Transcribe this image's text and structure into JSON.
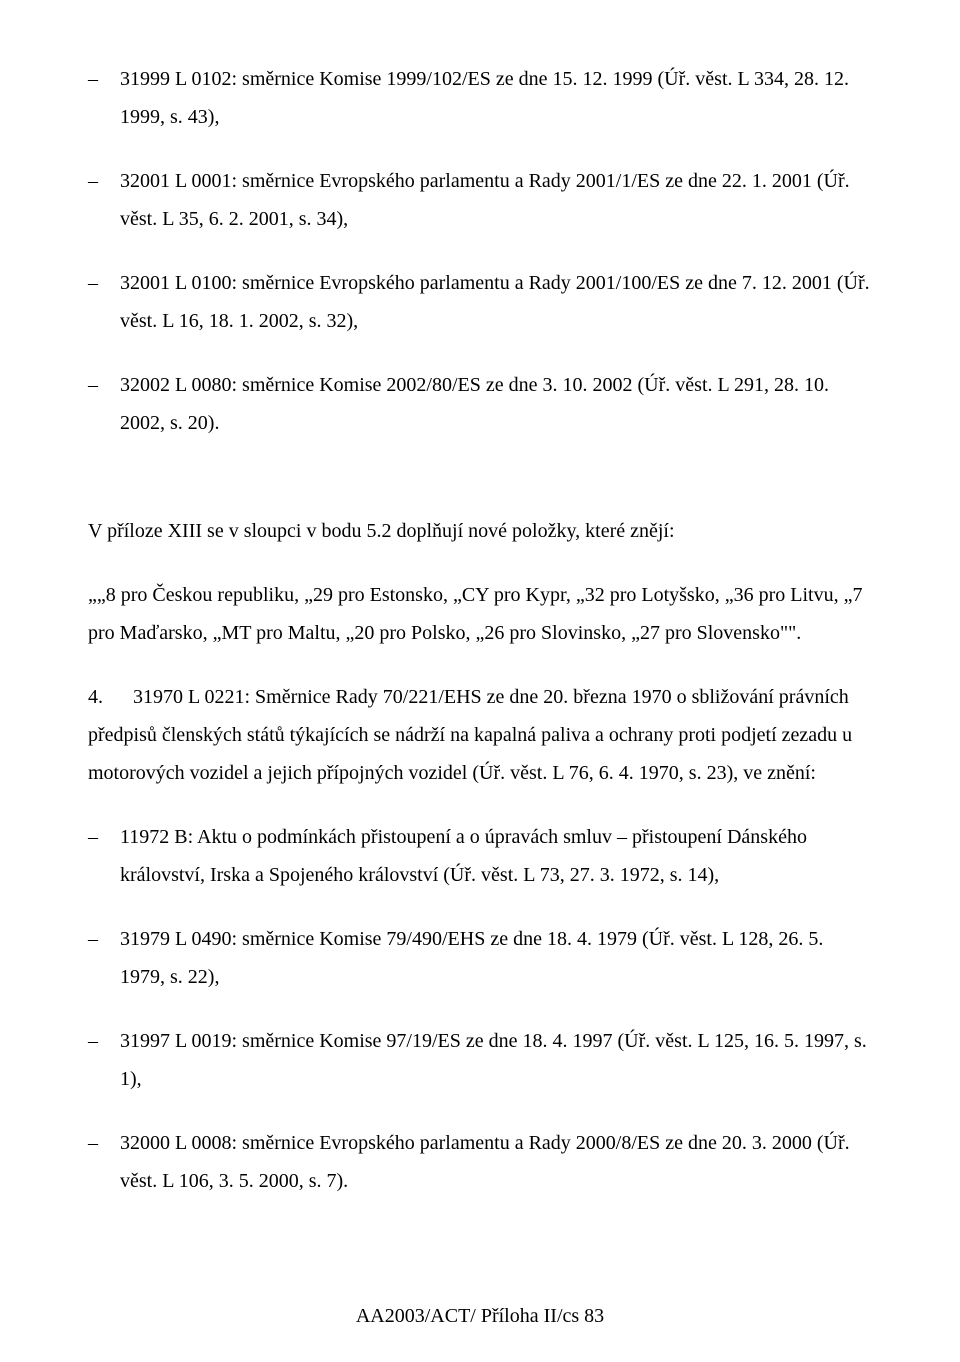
{
  "list_top": [
    "31999 L 0102: směrnice Komise 1999/102/ES ze dne 15. 12. 1999 (Úř. věst.  L 334, 28. 12. 1999, s. 43),",
    "32001 L 0001: směrnice Evropského parlamentu a Rady 2001/1/ES ze dne 22. 1. 2001 (Úř. věst. L 35, 6. 2. 2001, s. 34),",
    "32001 L 0100: směrnice Evropského parlamentu a Rady 2001/100/ES ze dne 7. 12. 2001 (Úř. věst. L 16, 18. 1. 2002, s. 32),",
    "32002 L 0080: směrnice Komise 2002/80/ES ze dne 3. 10. 2002 (Úř. věst. L 291, 28. 10. 2002, s. 20)."
  ],
  "para_intro": "V příloze XIII se v sloupci v bodu 5.2 doplňují nové položky, které znějí:",
  "para_quote": "„„8 pro Českou republiku, „29 pro Estonsko, „CY pro Kypr, „32 pro Lotyšsko, „36 pro Litvu, „7 pro Maďarsko, „MT pro Maltu, „20 pro Polsko, „26 pro Slovinsko, „27 pro Slovensko\"\".",
  "para_4": "4.      31970 L 0221: Směrnice Rady 70/221/EHS ze dne 20. března 1970 o sbližování právních předpisů členských států týkajících se nádrží na kapalná paliva a ochrany proti podjetí zezadu u motorových vozidel a jejich přípojných vozidel (Úř. věst. L 76, 6. 4. 1970, s. 23), ve znění:",
  "list_bottom": [
    "11972 B: Aktu o podmínkách přistoupení a o úpravách smluv – přistoupení Dánského království, Irska a Spojeného království (Úř. věst. L 73, 27. 3. 1972, s. 14),",
    "31979 L 0490: směrnice Komise 79/490/EHS ze dne 18. 4. 1979 (Úř. věst. L 128, 26. 5. 1979, s. 22),",
    "31997 L 0019: směrnice Komise 97/19/ES ze dne 18. 4. 1997 (Úř. věst. L 125, 16. 5. 1997, s. 1),",
    "32000 L 0008: směrnice Evropského parlamentu a Rady 2000/8/ES ze dne 20. 3. 2000 (Úř. věst. L 106, 3. 5. 2000, s. 7)."
  ],
  "footer": "AA2003/ACT/ Příloha II/cs 83"
}
